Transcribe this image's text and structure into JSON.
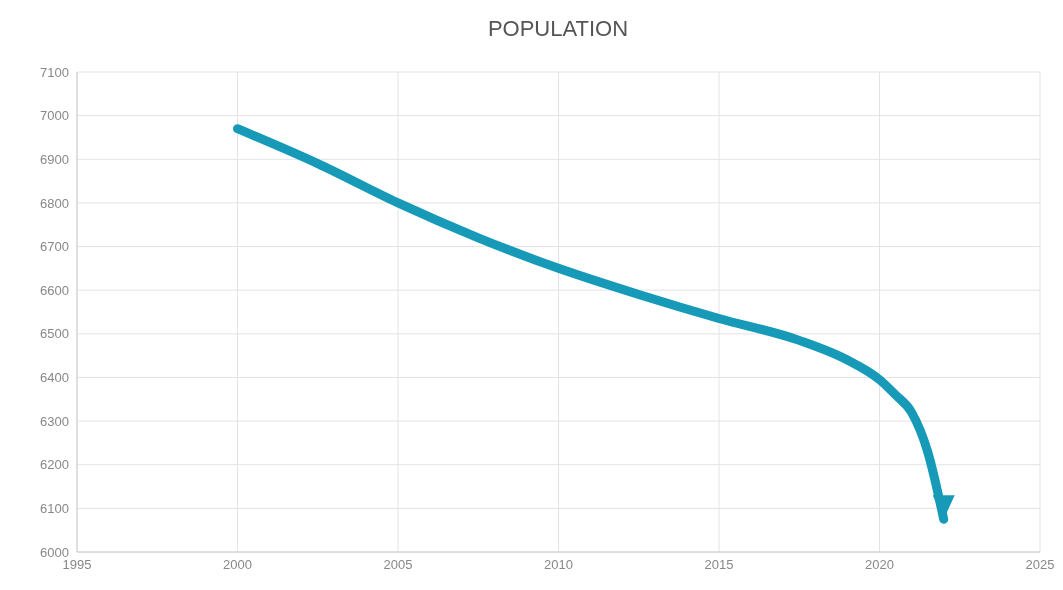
{
  "chart_data": {
    "type": "line",
    "title": "POPULATION",
    "x": [
      2000,
      2002.5,
      2005,
      2007.5,
      2010,
      2012.5,
      2015,
      2017.5,
      2019,
      2020,
      2020.5,
      2021,
      2021.5,
      2022
    ],
    "series": [
      {
        "color": "#169ab8",
        "values": [
          6970,
          6890,
          6800,
          6720,
          6650,
          6590,
          6535,
          6485,
          6440,
          6395,
          6360,
          6320,
          6230,
          6075
        ]
      }
    ],
    "xlim": [
      1995,
      2025
    ],
    "xticks": [
      1995,
      2000,
      2005,
      2010,
      2015,
      2020,
      2025
    ],
    "ylim": [
      6000,
      7100
    ],
    "yticks": [
      6000,
      6100,
      6200,
      6300,
      6400,
      6500,
      6600,
      6700,
      6800,
      6900,
      7000,
      7100
    ],
    "grid": true,
    "marker": "none",
    "line_style": "solid"
  }
}
